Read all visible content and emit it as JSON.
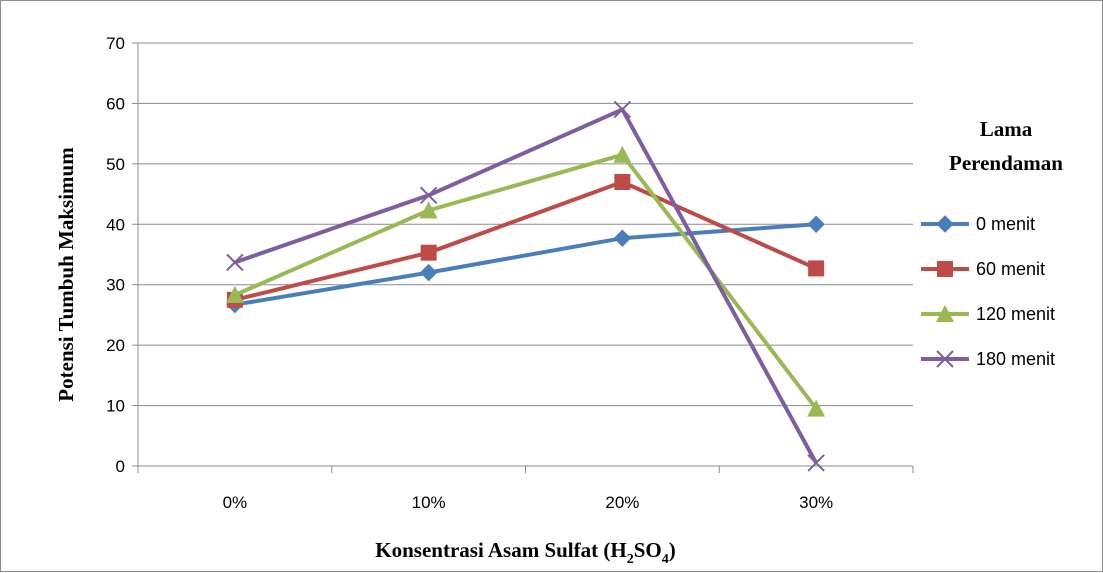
{
  "chart_data": {
    "type": "line",
    "xlabel_main": "Konsentrasi  Asam Sulfat  (H",
    "xlabel_sub1": "2",
    "xlabel_mid": "SO",
    "xlabel_sub2": "4",
    "xlabel_end": ")",
    "ylabel": "Potensi Tumbuh Maksimum",
    "legend_title_line1": "Lama",
    "legend_title_line2": "Perendaman",
    "categories": [
      "0%",
      "10%",
      "20%",
      "30%"
    ],
    "y_ticks": [
      "0",
      "10",
      "20",
      "30",
      "40",
      "50",
      "60",
      "70"
    ],
    "ylim": [
      0,
      70
    ],
    "grid": "horizontal",
    "legend_position": "right",
    "series": [
      {
        "name": "0 menit",
        "values": [
          26.7,
          32,
          37.7,
          40
        ],
        "color": "#4a7ebb",
        "marker": "diamond"
      },
      {
        "name": "60 menit",
        "values": [
          27.5,
          35.3,
          47,
          32.7
        ],
        "color": "#be4b48",
        "marker": "square"
      },
      {
        "name": "120 menit",
        "values": [
          28.3,
          42.3,
          51.5,
          9.5
        ],
        "color": "#98b954",
        "marker": "triangle"
      },
      {
        "name": "180 menit",
        "values": [
          33.7,
          44.8,
          59,
          0.5
        ],
        "color": "#7d5fa0",
        "marker": "x"
      }
    ]
  }
}
